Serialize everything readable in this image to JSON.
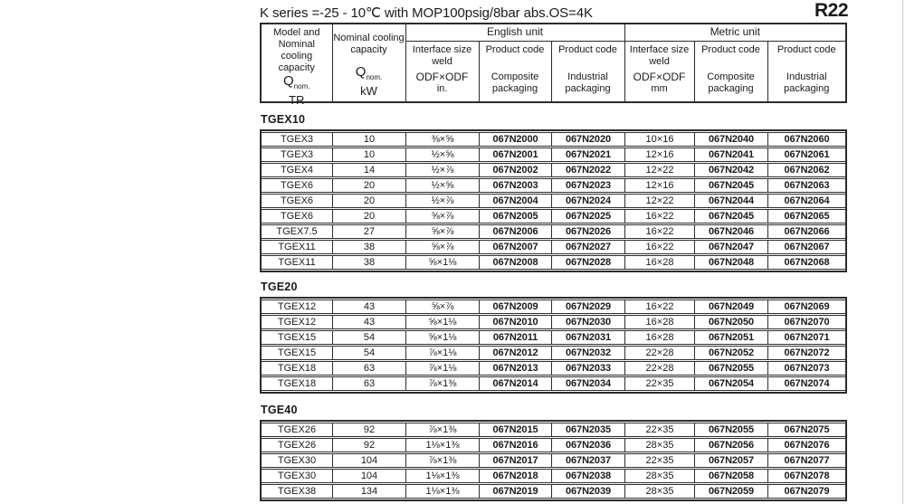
{
  "page": {
    "title": "K series =-25 - 10℃ with MOP100psig/8bar abs.OS=4K",
    "refrigerant": "R22"
  },
  "table_header": {
    "col_model": {
      "line1": "Model and",
      "line2": "Nominal cooling",
      "line3": "capacity",
      "q": "Q",
      "q_sub": "nom.",
      "unit": "TR"
    },
    "col_capacity": {
      "line1": "Nominal cooling",
      "line2": "capacity",
      "q": "Q",
      "q_sub": "nom.",
      "unit": "kW"
    },
    "english_unit": "English unit",
    "metric_unit": "Metric unit",
    "eng_interface": {
      "line1": "Interface size",
      "line2": "weld",
      "line3": "ODF×ODF",
      "line4": "in."
    },
    "eng_composite": {
      "line1": "Product code",
      "line2": "Composite",
      "line3": "packaging"
    },
    "eng_industrial": {
      "line1": "Product code",
      "line2": "Industrial",
      "line3": "packaging"
    },
    "met_interface": {
      "line1": "Interface size",
      "line2": "weld",
      "line3": "ODF×ODF",
      "line4": "mm"
    },
    "met_composite": {
      "line1": "Product code",
      "line2": "Composite",
      "line3": "packaging"
    },
    "met_industrial": {
      "line1": "Product code",
      "line2": "Industrial",
      "line3": "packaging"
    }
  },
  "sections": [
    {
      "label": "TGEX10",
      "rows": [
        [
          "TGEX3",
          "10",
          "⅜×⅝",
          "067N2000",
          "067N2020",
          "10×16",
          "067N2040",
          "067N2060"
        ],
        [
          "TGEX3",
          "10",
          "½×⅝",
          "067N2001",
          "067N2021",
          "12×16",
          "067N2041",
          "067N2061"
        ],
        [
          "TGEX4",
          "14",
          "½×⅞",
          "067N2002",
          "067N2022",
          "12×22",
          "067N2042",
          "067N2062"
        ],
        [
          "TGEX6",
          "20",
          "½×⅝",
          "067N2003",
          "067N2023",
          "12×16",
          "067N2045",
          "067N2063"
        ],
        [
          "TGEX6",
          "20",
          "½×⅞",
          "067N2004",
          "067N2024",
          "12×22",
          "067N2044",
          "067N2064"
        ],
        [
          "TGEX6",
          "20",
          "⅝×⅞",
          "067N2005",
          "067N2025",
          "16×22",
          "067N2045",
          "067N2065"
        ],
        [
          "TGEX7.5",
          "27",
          "⅝×⅞",
          "067N2006",
          "067N2026",
          "16×22",
          "067N2046",
          "067N2066"
        ],
        [
          "TGEX11",
          "38",
          "⅝×⅞",
          "067N2007",
          "067N2027",
          "16×22",
          "067N2047",
          "067N2067"
        ],
        [
          "TGEX11",
          "38",
          "⅝×1⅛",
          "067N2008",
          "067N2028",
          "16×28",
          "067N2048",
          "067N2068"
        ]
      ]
    },
    {
      "label": "TGE20",
      "rows": [
        [
          "TGEX12",
          "43",
          "⅝×⅞",
          "067N2009",
          "067N2029",
          "16×22",
          "067N2049",
          "067N2069"
        ],
        [
          "TGEX12",
          "43",
          "⅝×1⅛",
          "067N2010",
          "067N2030",
          "16×28",
          "067N2050",
          "067N2070"
        ],
        [
          "TGEX15",
          "54",
          "⅝×1⅛",
          "067N2011",
          "067N2031",
          "16×28",
          "067N2051",
          "067N2071"
        ],
        [
          "TGEX15",
          "54",
          "⅞×1⅛",
          "067N2012",
          "067N2032",
          "22×28",
          "067N2052",
          "067N2072"
        ],
        [
          "TGEX18",
          "63",
          "⅞×1⅛",
          "067N2013",
          "067N2033",
          "22×28",
          "067N2055",
          "067N2073"
        ],
        [
          "TGEX18",
          "63",
          "⅞×1⅜",
          "067N2014",
          "067N2034",
          "22×35",
          "067N2054",
          "067N2074"
        ]
      ]
    },
    {
      "label": "TGE40",
      "rows": [
        [
          "TGEX26",
          "92",
          "⅞×1⅜",
          "067N2015",
          "067N2035",
          "22×35",
          "067N2055",
          "067N2075"
        ],
        [
          "TGEX26",
          "92",
          "1⅛×1⅜",
          "067N2016",
          "067N2036",
          "28×35",
          "067N2056",
          "067N2076"
        ],
        [
          "TGEX30",
          "104",
          "⅞×1⅜",
          "067N2017",
          "067N2037",
          "22×35",
          "067N2057",
          "067N2077"
        ],
        [
          "TGEX30",
          "104",
          "1⅛×1⅜",
          "067N2018",
          "067N2038",
          "28×35",
          "067N2058",
          "067N2078"
        ],
        [
          "TGEX38",
          "134",
          "1⅛×1⅜",
          "067N2019",
          "067N2039",
          "28×35",
          "067N2059",
          "067N2079"
        ]
      ]
    }
  ]
}
